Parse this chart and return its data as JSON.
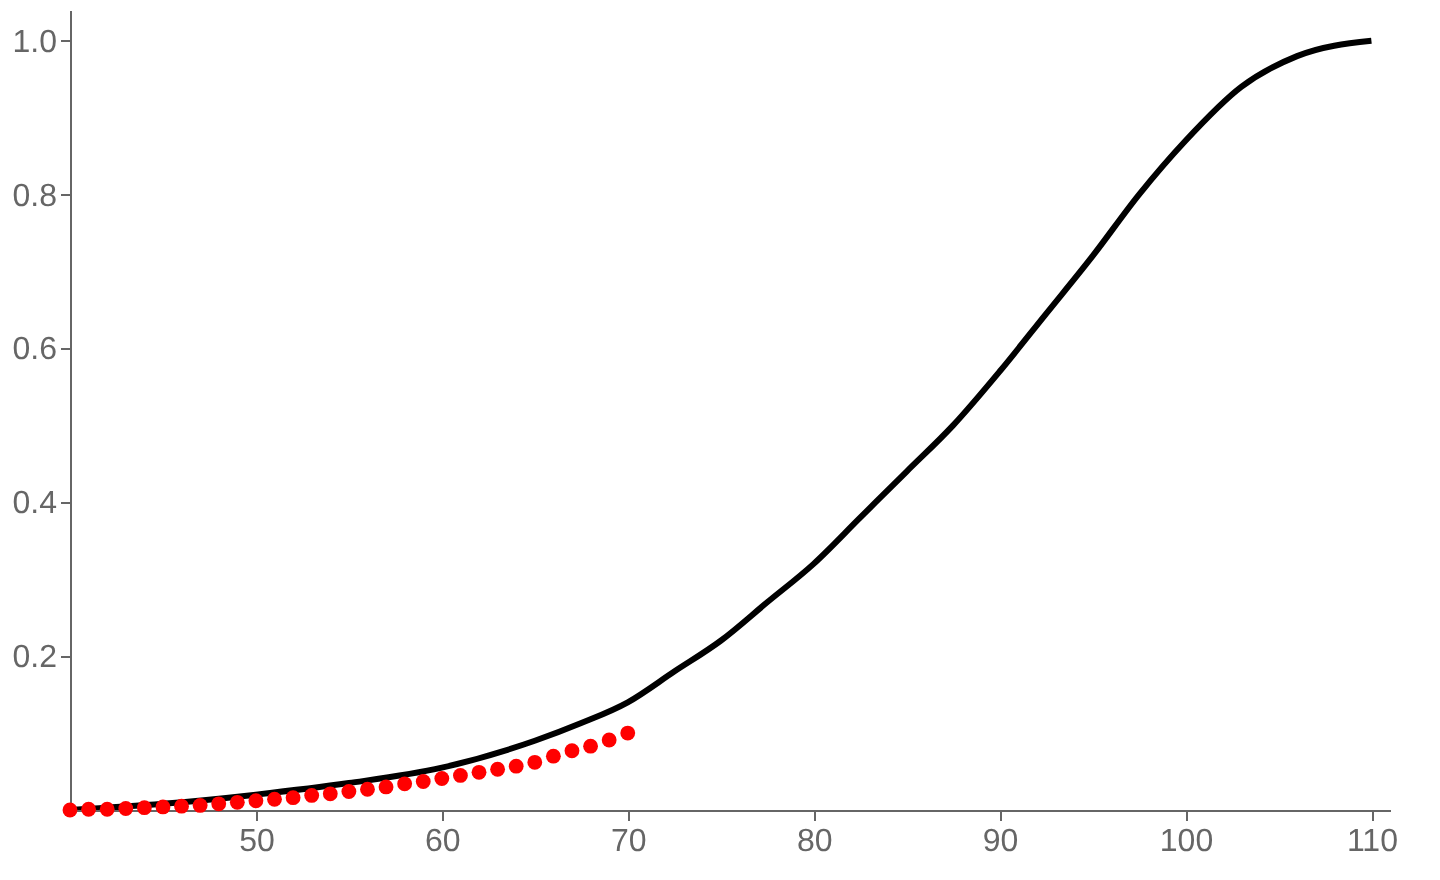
{
  "chart_data": {
    "type": "line",
    "xlim": [
      40,
      111
    ],
    "ylim": [
      0,
      1.04
    ],
    "xticks": [
      50,
      60,
      70,
      80,
      90,
      100,
      110
    ],
    "yticks": [
      0.2,
      0.4,
      0.6,
      0.8,
      {
        "value": 1,
        "label": "1.0"
      }
    ],
    "grid": false,
    "series": [
      {
        "color": "#000000",
        "line_style": "solid",
        "x": [
          40,
          45,
          50,
          55,
          60,
          65,
          67.5,
          70,
          72.5,
          75,
          77.5,
          80,
          82.5,
          85,
          87.5,
          90,
          92.5,
          95,
          97.5,
          100,
          103,
          106,
          110
        ],
        "values": [
          0,
          0.008,
          0.02,
          0.035,
          0.055,
          0.09,
          0.113,
          0.14,
          0.18,
          0.22,
          0.27,
          0.32,
          0.38,
          0.44,
          0.5,
          0.57,
          0.645,
          0.72,
          0.8,
          0.87,
          0.94,
          0.98,
          1.0
        ]
      },
      {
        "type": "scatter",
        "color": "#ff0000",
        "marker": "circle",
        "x": [
          40,
          41,
          42,
          43,
          44,
          45,
          46,
          47,
          48,
          49,
          50,
          51,
          52,
          53,
          54,
          55,
          56,
          57,
          58,
          59,
          60,
          61,
          62,
          63,
          64,
          65,
          66,
          67,
          68,
          69,
          70
        ],
        "values": [
          0,
          0.001,
          0.001,
          0.002,
          0.003,
          0.004,
          0.005,
          0.006,
          0.008,
          0.01,
          0.012,
          0.014,
          0.016,
          0.019,
          0.021,
          0.024,
          0.027,
          0.03,
          0.034,
          0.037,
          0.041,
          0.045,
          0.049,
          0.053,
          0.057,
          0.062,
          0.07,
          0.077,
          0.083,
          0.091,
          0.1
        ]
      }
    ]
  }
}
